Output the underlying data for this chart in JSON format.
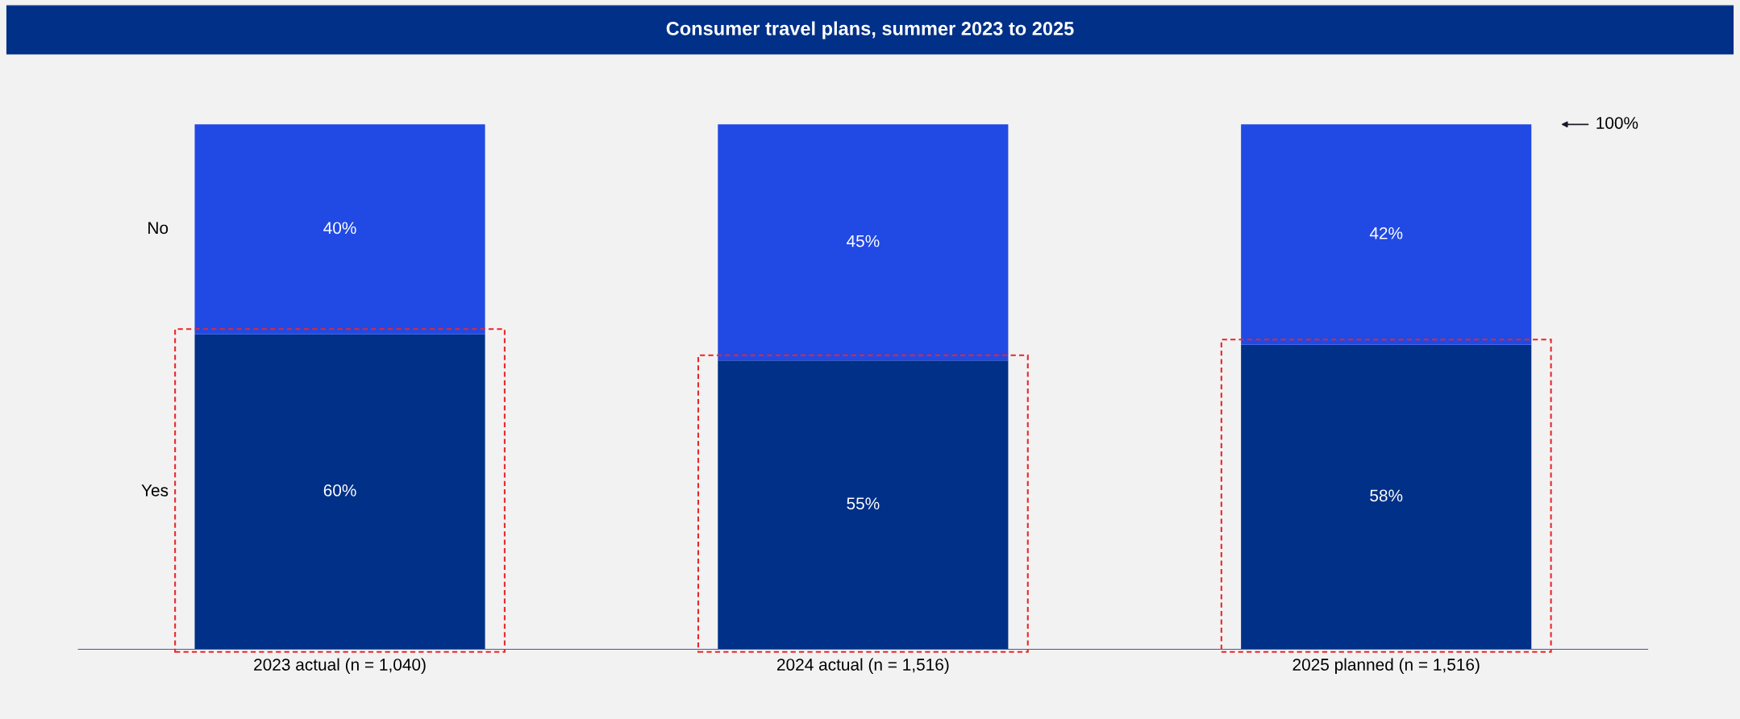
{
  "chart_data": {
    "type": "bar",
    "stacked": true,
    "title": "Consumer travel plans, summer 2023 to 2025",
    "categories": [
      "2023 actual (n = 1,040)",
      "2024 actual (n = 1,516)",
      "2025 planned (n = 1,516)"
    ],
    "series": [
      {
        "name": "Yes",
        "color": "#003087",
        "values": [
          60,
          55,
          58
        ],
        "value_labels": [
          "60%",
          "55%",
          "58%"
        ]
      },
      {
        "name": "No",
        "color": "#2149e4",
        "values": [
          40,
          45,
          42
        ],
        "value_labels": [
          "40%",
          "45%",
          "42%"
        ]
      }
    ],
    "legend": false,
    "grid": false,
    "annotations": [
      "100%"
    ]
  }
}
